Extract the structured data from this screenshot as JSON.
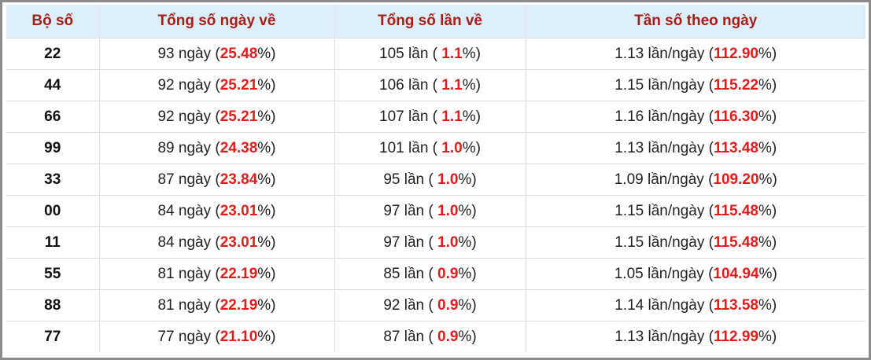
{
  "table": {
    "header": [
      "Bộ số",
      "Tổng số ngày về",
      "Tổng số lần về",
      "Tần số theo ngày"
    ],
    "rows": [
      [
        "22",
        [
          "93 ngày (",
          "25.48",
          "%)"
        ],
        [
          "105 lần ( ",
          "1.1",
          "%)"
        ],
        [
          "1.13 lần/ngày (",
          "112.90",
          "%)"
        ]
      ],
      [
        "44",
        [
          "92 ngày (",
          "25.21",
          "%)"
        ],
        [
          "106 lần ( ",
          "1.1",
          "%)"
        ],
        [
          "1.15 lần/ngày (",
          "115.22",
          "%)"
        ]
      ],
      [
        "66",
        [
          "92 ngày (",
          "25.21",
          "%)"
        ],
        [
          "107 lần ( ",
          "1.1",
          "%)"
        ],
        [
          "1.16 lần/ngày (",
          "116.30",
          "%)"
        ]
      ],
      [
        "99",
        [
          "89 ngày (",
          "24.38",
          "%)"
        ],
        [
          "101 lần ( ",
          "1.0",
          "%)"
        ],
        [
          "1.13 lần/ngày (",
          "113.48",
          "%)"
        ]
      ],
      [
        "33",
        [
          "87 ngày (",
          "23.84",
          "%)"
        ],
        [
          "95 lần ( ",
          "1.0",
          "%)"
        ],
        [
          "1.09 lần/ngày (",
          "109.20",
          "%)"
        ]
      ],
      [
        "00",
        [
          "84 ngày (",
          "23.01",
          "%)"
        ],
        [
          "97 lần ( ",
          "1.0",
          "%)"
        ],
        [
          "1.15 lần/ngày (",
          "115.48",
          "%)"
        ]
      ],
      [
        "11",
        [
          "84 ngày (",
          "23.01",
          "%)"
        ],
        [
          "97 lần ( ",
          "1.0",
          "%)"
        ],
        [
          "1.15 lần/ngày (",
          "115.48",
          "%)"
        ]
      ],
      [
        "55",
        [
          "81 ngày (",
          "22.19",
          "%)"
        ],
        [
          "85 lần ( ",
          "0.9",
          "%)"
        ],
        [
          "1.05 lần/ngày (",
          "104.94",
          "%)"
        ]
      ],
      [
        "88",
        [
          "81 ngày (",
          "22.19",
          "%)"
        ],
        [
          "92 lần ( ",
          "0.9",
          "%)"
        ],
        [
          "1.14 lần/ngày (",
          "113.58",
          "%)"
        ]
      ],
      [
        "77",
        [
          "77 ngày (",
          "21.10",
          "%)"
        ],
        [
          "87 lần ( ",
          "0.9",
          "%)"
        ],
        [
          "1.13 lần/ngày (",
          "112.99",
          "%)"
        ]
      ]
    ]
  }
}
